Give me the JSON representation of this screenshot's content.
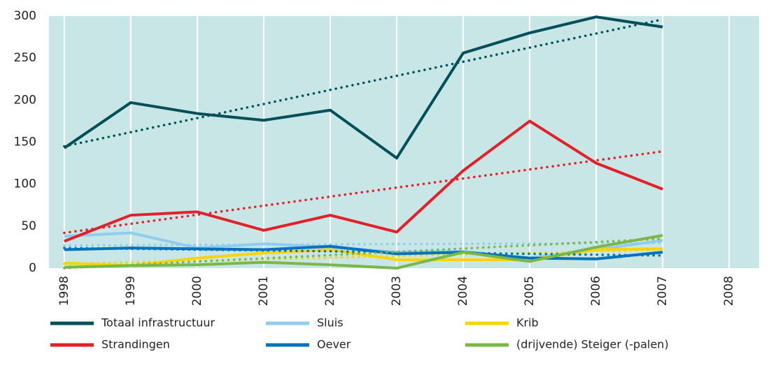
{
  "chart_data": {
    "type": "line",
    "x": [
      1998,
      1999,
      2000,
      2001,
      2002,
      2003,
      2004,
      2005,
      2006,
      2007
    ],
    "xlim": [
      1997.77,
      2008.45
    ],
    "xticks": [
      1998,
      1999,
      2000,
      2001,
      2002,
      2003,
      2004,
      2005,
      2006,
      2007,
      2008
    ],
    "ylim": [
      0,
      300
    ],
    "yticks": [
      0,
      50,
      100,
      150,
      200,
      250,
      300
    ],
    "grid": true,
    "trend_x": [
      1998,
      2007
    ],
    "series": [
      {
        "name": "Totaal infrastructuur",
        "color": "#00505a",
        "values": [
          143,
          197,
          184,
          176,
          188,
          131,
          256,
          280,
          299,
          287
        ],
        "trend": [
          145,
          296
        ]
      },
      {
        "name": "Sluis",
        "color": "#8fcdee",
        "values": [
          38,
          42,
          24,
          29,
          25,
          19,
          20,
          12,
          22,
          33
        ],
        "trend": [
          27,
          30
        ]
      },
      {
        "name": "Krib",
        "color": "#f5d40a",
        "values": [
          6,
          3,
          12,
          18,
          22,
          10,
          10,
          10,
          22,
          23
        ],
        "trend": [
          5,
          22
        ]
      },
      {
        "name": "Strandingen",
        "color": "#e3202a",
        "values": [
          32,
          63,
          67,
          45,
          63,
          43,
          116,
          175,
          125,
          94
        ],
        "trend": [
          42,
          139
        ]
      },
      {
        "name": "Oever",
        "color": "#0072bc",
        "values": [
          22,
          24,
          23,
          22,
          26,
          17,
          19,
          12,
          11,
          19
        ],
        "trend": [
          24,
          15
        ]
      },
      {
        "name": "(drijvende) Steiger (-palen)",
        "color": "#7ab648",
        "values": [
          1,
          3,
          4,
          7,
          4,
          0,
          19,
          8,
          25,
          39
        ],
        "trend": [
          0,
          35
        ]
      }
    ]
  }
}
